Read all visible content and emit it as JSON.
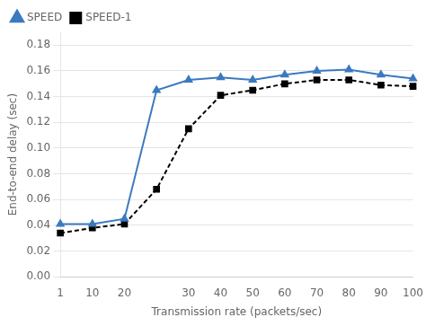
{
  "chart_data": {
    "type": "line",
    "xlabel": "Transmission rate (packets/sec)",
    "ylabel": "End-to-end delay (sec)",
    "categories": [
      "1",
      "10",
      "20",
      null,
      "30",
      "40",
      "50",
      "60",
      "70",
      "80",
      "90",
      "100"
    ],
    "series": [
      {
        "name": "SPEED",
        "color": "#3a7abf",
        "marker": "triangle",
        "line_style": "solid",
        "values": [
          0.041,
          0.041,
          0.045,
          0.145,
          0.153,
          0.155,
          0.153,
          0.157,
          0.16,
          0.161,
          0.157,
          0.154
        ]
      },
      {
        "name": "SPEED-1",
        "color": "#000000",
        "marker": "square",
        "line_style": "dashed",
        "values": [
          0.034,
          0.038,
          0.041,
          0.068,
          0.115,
          0.141,
          0.145,
          0.15,
          0.153,
          0.153,
          0.149,
          0.148
        ]
      }
    ],
    "ylim": [
      0.0,
      0.19
    ],
    "yticks": [
      {
        "value": 0.0,
        "label": "0.00"
      },
      {
        "value": 0.02,
        "label": "0.02"
      },
      {
        "value": 0.04,
        "label": "0.04"
      },
      {
        "value": 0.06,
        "label": "0.06"
      },
      {
        "value": 0.08,
        "label": "0.08"
      },
      {
        "value": 0.1,
        "label": "0.10"
      },
      {
        "value": 0.12,
        "label": "0.12"
      },
      {
        "value": 0.14,
        "label": "0.14"
      },
      {
        "value": 0.16,
        "label": "0.16"
      },
      {
        "value": 0.18,
        "label": "0.18"
      }
    ],
    "grid": "y",
    "legend": "upper left"
  }
}
